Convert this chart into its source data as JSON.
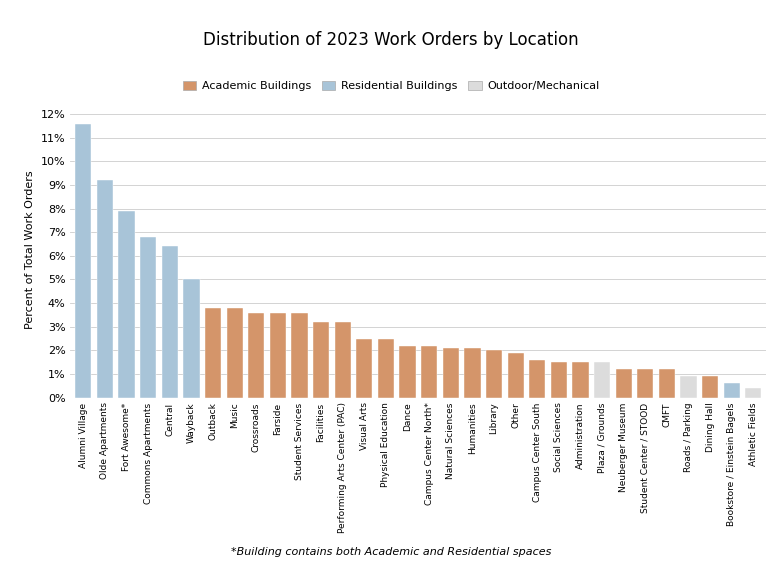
{
  "title": "Distribution of 2023 Work Orders by Location",
  "ylabel": "Percent of Total Work Orders",
  "footnote": "*Building contains both Academic and Residential spaces",
  "ylim": [
    0,
    0.125
  ],
  "yticks": [
    0,
    0.01,
    0.02,
    0.03,
    0.04,
    0.05,
    0.06,
    0.07,
    0.08,
    0.09,
    0.1,
    0.11,
    0.12
  ],
  "ytick_labels": [
    "0%",
    "1%",
    "2%",
    "3%",
    "4%",
    "5%",
    "6%",
    "7%",
    "8%",
    "9%",
    "10%",
    "11%",
    "12%"
  ],
  "legend_labels": [
    "Academic Buildings",
    "Residential Buildings",
    "Outdoor/Mechanical"
  ],
  "legend_colors": [
    "#D4956A",
    "#A8C4D8",
    "#DCDCDC"
  ],
  "categories": [
    "Alumni Village",
    "Olde Apartments",
    "Fort Awesome*",
    "Commons Apartments",
    "Central",
    "Wayback",
    "Outback",
    "Music",
    "Crossroads",
    "Farside",
    "Student Services",
    "Facilities",
    "Performing Arts Center (PAC)",
    "Visual Arts",
    "Physical Education",
    "Dance",
    "Campus Center North*",
    "Natural Sciences",
    "Humanities",
    "Library",
    "Other",
    "Campus Center South",
    "Social Sciences",
    "Administration",
    "Plaza / Grounds",
    "Neuberger Museum",
    "Student Center / STOOD",
    "CMFT",
    "Roads / Parking",
    "Dining Hall",
    "Bookstore / Einstein Bagels",
    "Athletic Fields"
  ],
  "values": [
    0.116,
    0.092,
    0.079,
    0.068,
    0.064,
    0.05,
    0.038,
    0.038,
    0.036,
    0.036,
    0.036,
    0.032,
    0.032,
    0.025,
    0.025,
    0.022,
    0.022,
    0.021,
    0.021,
    0.02,
    0.019,
    0.016,
    0.015,
    0.015,
    0.015,
    0.012,
    0.012,
    0.012,
    0.009,
    0.009,
    0.006,
    0.004
  ],
  "colors": [
    "#A8C4D8",
    "#A8C4D8",
    "#A8C4D8",
    "#A8C4D8",
    "#A8C4D8",
    "#A8C4D8",
    "#D4956A",
    "#D4956A",
    "#D4956A",
    "#D4956A",
    "#D4956A",
    "#D4956A",
    "#D4956A",
    "#D4956A",
    "#D4956A",
    "#D4956A",
    "#D4956A",
    "#D4956A",
    "#D4956A",
    "#D4956A",
    "#D4956A",
    "#D4956A",
    "#D4956A",
    "#D4956A",
    "#DCDCDC",
    "#D4956A",
    "#D4956A",
    "#D4956A",
    "#DCDCDC",
    "#D4956A",
    "#A8C4D8",
    "#DCDCDC"
  ],
  "background_color": "#FFFFFF",
  "grid_color": "#CCCCCC",
  "bar_width": 0.75,
  "title_fontsize": 12,
  "ylabel_fontsize": 8,
  "ytick_fontsize": 8,
  "xtick_fontsize": 6.5,
  "legend_fontsize": 8,
  "footnote_fontsize": 8
}
